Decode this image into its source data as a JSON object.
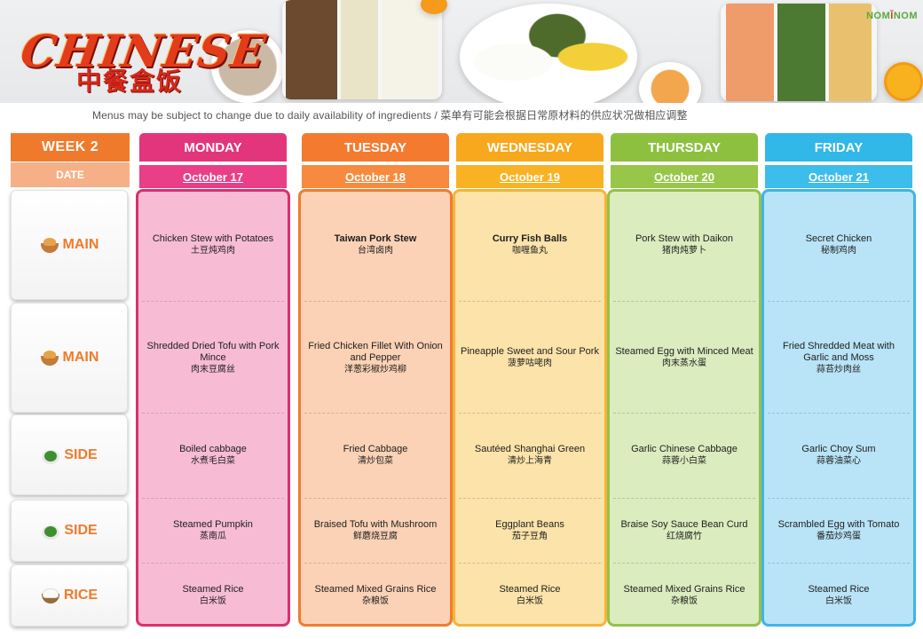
{
  "brand": {
    "logo_en": "CHINESE",
    "logo_cn": "中餐盒饭",
    "nomnom_left": "NOM",
    "nomnom_mark": "Ĭ",
    "nomnom_right": "NOM"
  },
  "disclaimer": "Menus may be subject to change due to daily availability of ingredients / 菜单有可能会根据日常原材料的供应状况做相应调整",
  "week_label": "WEEK  2",
  "date_label": "DATE",
  "rows": [
    {
      "label": "MAIN",
      "icon": "bowl-icon"
    },
    {
      "label": "MAIN",
      "icon": "bowl-icon"
    },
    {
      "label": "SIDE",
      "icon": "vegetable-icon"
    },
    {
      "label": "SIDE",
      "icon": "vegetable-icon"
    },
    {
      "label": "RICE",
      "icon": "rice-bowl-icon"
    }
  ],
  "days": [
    {
      "name": "MONDAY",
      "date": "October 17",
      "colors": {
        "head": "#e2357c",
        "date": "#ea3e86",
        "bg": "#f7bcd4",
        "border": "#d9306f"
      },
      "items": [
        {
          "en": "Chicken Stew with Potatoes",
          "cn": "土豆炖鸡肉"
        },
        {
          "en": "Shredded Dried Tofu with Pork Mince",
          "cn": "肉末豆腐丝"
        },
        {
          "en": "Boiled cabbage",
          "cn": "水煮毛白菜"
        },
        {
          "en": "Steamed Pumpkin",
          "cn": "蒸南瓜"
        },
        {
          "en": "Steamed Rice",
          "cn": "白米饭"
        }
      ]
    },
    {
      "name": "TUESDAY",
      "date": "October 18",
      "colors": {
        "head": "#f47a30",
        "date": "#f78a3e",
        "bg": "#fbd2b6",
        "border": "#f07c2e"
      },
      "items": [
        {
          "en": "Taiwan Pork Stew",
          "cn": "台湾卤肉"
        },
        {
          "en": "Fried Chicken Fillet With Onion and Pepper",
          "cn": "洋葱彩椒炒鸡柳"
        },
        {
          "en": "Fried Cabbage",
          "cn": "清炒包菜"
        },
        {
          "en": "Braised Tofu with Mushroom",
          "cn": "鲜蘑烧豆腐"
        },
        {
          "en": "Steamed Mixed Grains Rice",
          "cn": "杂粮饭"
        }
      ]
    },
    {
      "name": "WEDNESDAY",
      "date": "October 19",
      "colors": {
        "head": "#f7a81d",
        "date": "#f8b224",
        "bg": "#fbe3a9",
        "border": "#f4b43a"
      },
      "items": [
        {
          "en": "Curry Fish  Balls",
          "cn": "咖喱鱼丸"
        },
        {
          "en": "Pineapple Sweet and Sour Pork",
          "cn": "菠萝咕咾肉"
        },
        {
          "en": "Sautéed Shanghai Green",
          "cn": "清炒上海青"
        },
        {
          "en": "Eggplant Beans",
          "cn": "茄子豆角"
        },
        {
          "en": "Steamed Rice",
          "cn": "白米饭"
        }
      ]
    },
    {
      "name": "THURSDAY",
      "date": "October 20",
      "colors": {
        "head": "#8dc03f",
        "date": "#97c648",
        "bg": "#dbecbf",
        "border": "#92c24a"
      },
      "items": [
        {
          "en": "Pork Stew with Daikon",
          "cn": "猪肉炖萝卜"
        },
        {
          "en": "Steamed Egg with Minced Meat",
          "cn": "肉末蒸水蛋"
        },
        {
          "en": "Garlic Chinese Cabbage",
          "cn": "蒜蓉小白菜"
        },
        {
          "en": "Braise  Soy Sauce Bean Curd",
          "cn": "红烧腐竹"
        },
        {
          "en": "Steamed Mixed Grains Rice",
          "cn": "杂粮饭"
        }
      ]
    },
    {
      "name": "FRIDAY",
      "date": "October 21",
      "colors": {
        "head": "#31b7e8",
        "date": "#3cbdec",
        "bg": "#b9e3f6",
        "border": "#3fb5e6"
      },
      "items": [
        {
          "en": "Secret  Chicken",
          "cn": "秘制鸡肉"
        },
        {
          "en": "Fried Shredded Meat with Garlic and Moss",
          "cn": "蒜苔炒肉丝"
        },
        {
          "en": "Garlic Choy Sum",
          "cn": "蒜蓉油菜心"
        },
        {
          "en": "Scrambled Egg with Tomato",
          "cn": "番茄炒鸡蛋"
        },
        {
          "en": "Steamed Rice",
          "cn": "白米饭"
        }
      ]
    }
  ]
}
